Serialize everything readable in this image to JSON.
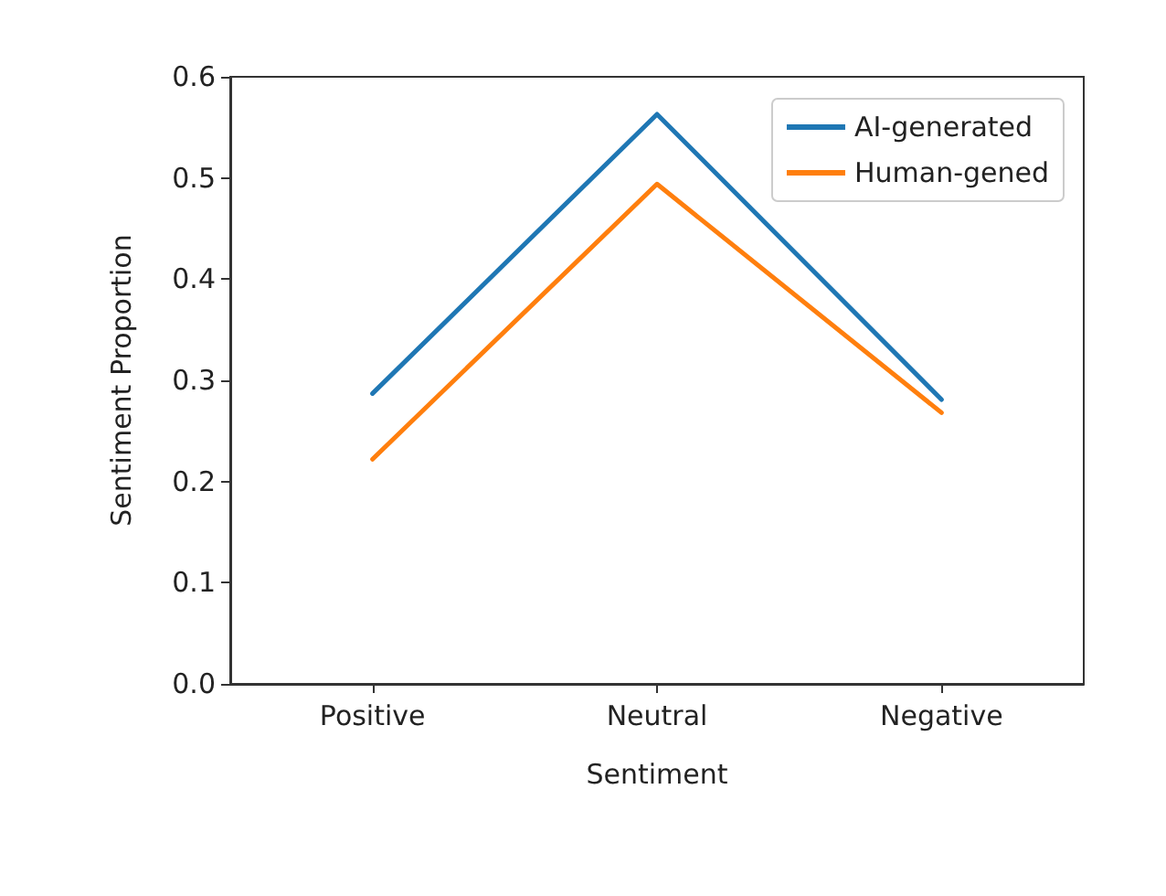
{
  "chart_data": {
    "type": "line",
    "xlabel": "Sentiment",
    "ylabel": "Sentiment Proportion",
    "categories": [
      "Positive",
      "Neutral",
      "Negative"
    ],
    "series": [
      {
        "name": "AI-generated",
        "color": "#1f77b4",
        "values": [
          0.287,
          0.563,
          0.281
        ]
      },
      {
        "name": "Human-gened",
        "color": "#ff7f0e",
        "values": [
          0.222,
          0.494,
          0.268
        ]
      }
    ],
    "ylim": [
      0,
      0.6
    ],
    "yticks": [
      {
        "value": 0,
        "label": "0.0"
      },
      0.1,
      0.2,
      0.3,
      0.4,
      0.5,
      0.6
    ],
    "grid": false,
    "legend": "top right",
    "marker": "none",
    "line_style": "solid"
  }
}
